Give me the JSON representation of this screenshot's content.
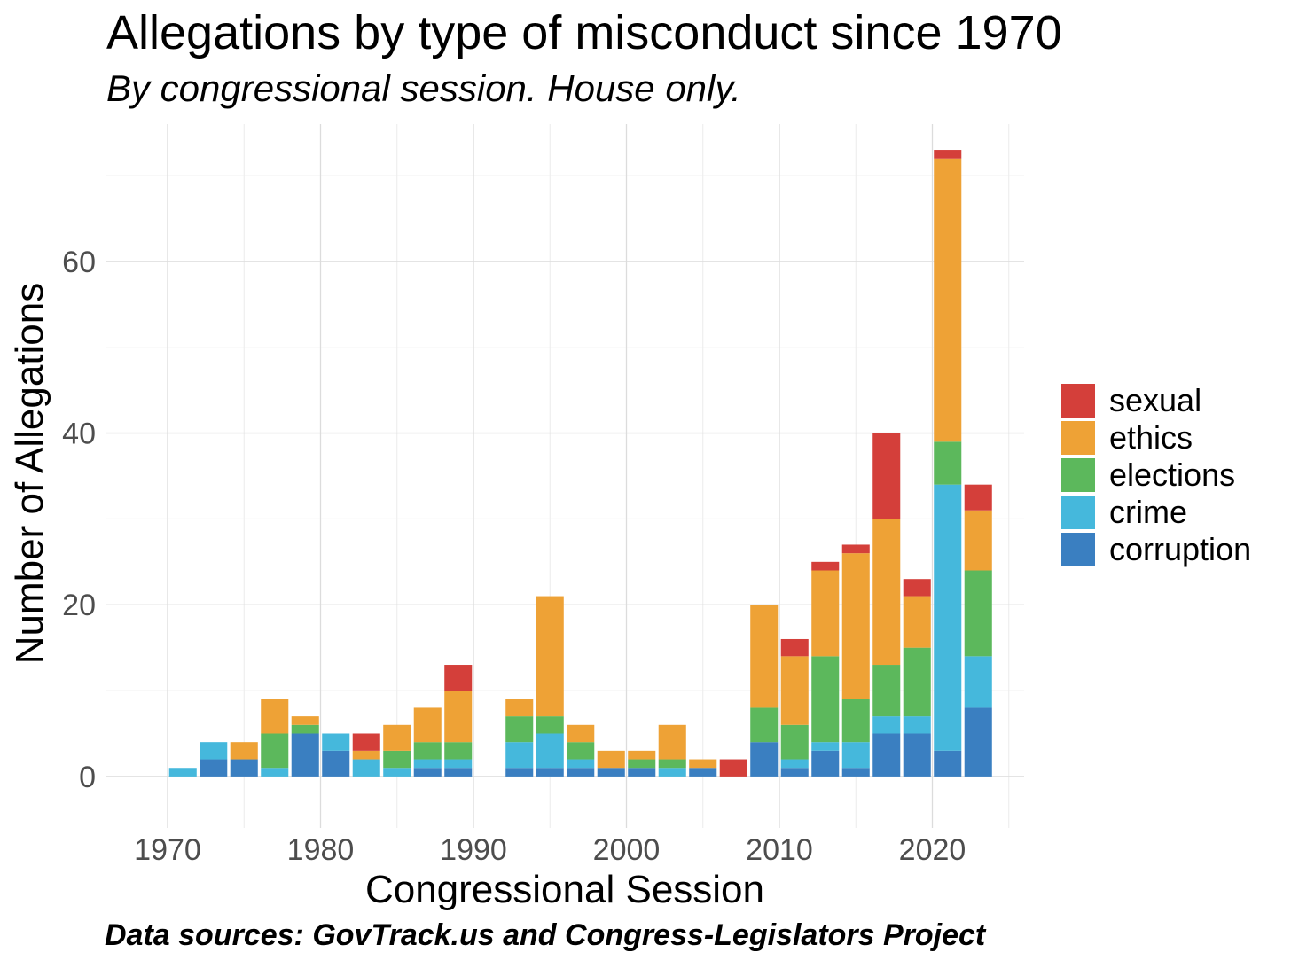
{
  "chart_data": {
    "type": "bar",
    "stacked": true,
    "title": "Allegations by type of misconduct since 1970",
    "subtitle": "By congressional session.  House only.",
    "caption": "Data sources: GovTrack.us and Congress-Legislators Project",
    "xlabel": "Congressional Session",
    "ylabel": "Number of Allegations",
    "xlim": [
      1966,
      2026
    ],
    "ylim": [
      -6,
      76
    ],
    "x_ticks": [
      1970,
      1980,
      1990,
      2000,
      2010,
      2020
    ],
    "y_ticks": [
      0,
      20,
      40,
      60
    ],
    "x": [
      1971,
      1973,
      1975,
      1977,
      1979,
      1981,
      1983,
      1985,
      1987,
      1989,
      1993,
      1995,
      1997,
      1999,
      2001,
      2003,
      2005,
      2007,
      2009,
      2011,
      2013,
      2015,
      2017,
      2019,
      2021,
      2023
    ],
    "series": [
      {
        "name": "corruption",
        "color": "#3a7fc1",
        "values": [
          0,
          2,
          2,
          0,
          5,
          3,
          0,
          0,
          1,
          1,
          1,
          1,
          1,
          1,
          1,
          0,
          1,
          0,
          4,
          1,
          3,
          1,
          5,
          5,
          3,
          8
        ]
      },
      {
        "name": "crime",
        "color": "#45b8dc",
        "values": [
          1,
          2,
          0,
          1,
          0,
          2,
          2,
          1,
          1,
          1,
          3,
          4,
          1,
          0,
          0,
          1,
          0,
          0,
          0,
          1,
          1,
          3,
          2,
          2,
          31,
          6
        ]
      },
      {
        "name": "elections",
        "color": "#5cb85c",
        "values": [
          0,
          0,
          0,
          4,
          1,
          0,
          0,
          2,
          2,
          2,
          3,
          2,
          2,
          0,
          1,
          1,
          0,
          0,
          4,
          4,
          10,
          5,
          6,
          8,
          5,
          10
        ]
      },
      {
        "name": "ethics",
        "color": "#eea236",
        "values": [
          0,
          0,
          2,
          4,
          1,
          0,
          1,
          3,
          4,
          6,
          2,
          14,
          2,
          2,
          1,
          4,
          1,
          0,
          12,
          8,
          10,
          17,
          17,
          6,
          33,
          7
        ]
      },
      {
        "name": "sexual",
        "color": "#d43f3a",
        "values": [
          0,
          0,
          0,
          0,
          0,
          0,
          2,
          0,
          0,
          3,
          0,
          0,
          0,
          0,
          0,
          0,
          0,
          2,
          0,
          2,
          1,
          1,
          10,
          2,
          1,
          3
        ]
      }
    ],
    "legend": {
      "position": "right",
      "order": [
        "sexual",
        "ethics",
        "elections",
        "crime",
        "corruption"
      ]
    }
  }
}
